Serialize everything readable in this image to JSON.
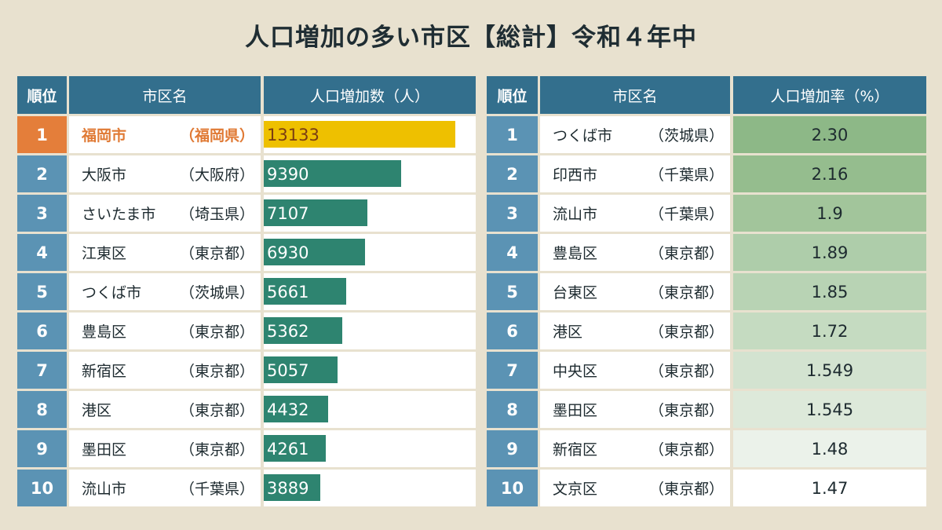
{
  "title": "人口増加の多い市区【総計】令和４年中",
  "left_table": {
    "headers": [
      "順位",
      "市区名",
      "人口増加数（人）"
    ],
    "max_value": 13133,
    "rows": [
      {
        "rank": "1",
        "city": "福岡市",
        "pref": "（福岡県）",
        "value": 13133,
        "highlight": true
      },
      {
        "rank": "2",
        "city": "大阪市",
        "pref": "（大阪府）",
        "value": 9390
      },
      {
        "rank": "3",
        "city": "さいたま市",
        "pref": "（埼玉県）",
        "value": 7107
      },
      {
        "rank": "4",
        "city": "江東区",
        "pref": "（東京都）",
        "value": 6930
      },
      {
        "rank": "5",
        "city": "つくば市",
        "pref": "（茨城県）",
        "value": 5661
      },
      {
        "rank": "6",
        "city": "豊島区",
        "pref": "（東京都）",
        "value": 5362
      },
      {
        "rank": "7",
        "city": "新宿区",
        "pref": "（東京都）",
        "value": 5057
      },
      {
        "rank": "8",
        "city": "港区",
        "pref": "（東京都）",
        "value": 4432
      },
      {
        "rank": "9",
        "city": "墨田区",
        "pref": "（東京都）",
        "value": 4261
      },
      {
        "rank": "10",
        "city": "流山市",
        "pref": "（千葉県）",
        "value": 3889
      }
    ]
  },
  "right_table": {
    "headers": [
      "順位",
      "市区名",
      "人口増加率（%）"
    ],
    "rows": [
      {
        "rank": "1",
        "city": "つくば市",
        "pref": "（茨城県）",
        "value": "2.30",
        "color": "#8db887"
      },
      {
        "rank": "2",
        "city": "印西市",
        "pref": "（千葉県）",
        "value": "2.16",
        "color": "#95bd8e"
      },
      {
        "rank": "3",
        "city": "流山市",
        "pref": "（千葉県）",
        "value": "1.9",
        "color": "#a2c59b"
      },
      {
        "rank": "4",
        "city": "豊島区",
        "pref": "（東京都）",
        "value": "1.89",
        "color": "#aecdaa"
      },
      {
        "rank": "5",
        "city": "台東区",
        "pref": "（東京都）",
        "value": "1.85",
        "color": "#b8d3b4"
      },
      {
        "rank": "6",
        "city": "港区",
        "pref": "（東京都）",
        "value": "1.72",
        "color": "#c5dbc1"
      },
      {
        "rank": "7",
        "city": "中央区",
        "pref": "（東京都）",
        "value": "1.549",
        "color": "#d3e3d0"
      },
      {
        "rank": "8",
        "city": "墨田区",
        "pref": "（東京都）",
        "value": "1.545",
        "color": "#dde9da"
      },
      {
        "rank": "9",
        "city": "新宿区",
        "pref": "（東京都）",
        "value": "1.48",
        "color": "#ebf2ea"
      },
      {
        "rank": "10",
        "city": "文京区",
        "pref": "（東京都）",
        "value": "1.47",
        "color": "#ffffff"
      }
    ]
  },
  "colors": {
    "background": "#e8e1cf",
    "header": "#336f8d",
    "rank": "#5b93b4",
    "highlight_rank": "#e47e3a",
    "highlight_bar": "#eec000",
    "bar": "#2e8470"
  },
  "chart_data": [
    {
      "type": "bar",
      "title": "人口増加の多い市区【総計】令和４年中 — 人口増加数（人）",
      "categories": [
        "福岡市（福岡県）",
        "大阪市（大阪府）",
        "さいたま市（埼玉県）",
        "江東区（東京都）",
        "つくば市（茨城県）",
        "豊島区（東京都）",
        "新宿区（東京都）",
        "港区（東京都）",
        "墨田区（東京都）",
        "流山市（千葉県）"
      ],
      "values": [
        13133,
        9390,
        7107,
        6930,
        5661,
        5362,
        5057,
        4432,
        4261,
        3889
      ],
      "xlabel": "",
      "ylabel": "人口増加数（人）",
      "orientation": "horizontal"
    },
    {
      "type": "table",
      "title": "人口増加の多い市区【総計】令和４年中 — 人口増加率（%）",
      "categories": [
        "つくば市（茨城県）",
        "印西市（千葉県）",
        "流山市（千葉県）",
        "豊島区（東京都）",
        "台東区（東京都）",
        "港区（東京都）",
        "中央区（東京都）",
        "墨田区（東京都）",
        "新宿区（東京都）",
        "文京区（東京都）"
      ],
      "values": [
        2.3,
        2.16,
        1.9,
        1.89,
        1.85,
        1.72,
        1.549,
        1.545,
        1.48,
        1.47
      ],
      "ylabel": "人口増加率（%）"
    }
  ]
}
